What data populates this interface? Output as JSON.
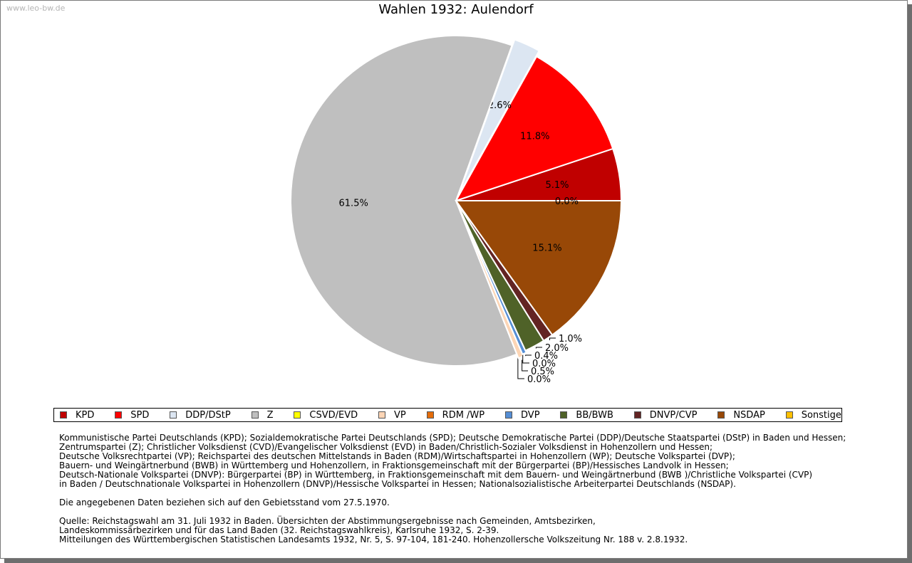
{
  "watermark": "www.leo-bw.de",
  "chart_data": {
    "type": "pie",
    "title": "Wahlen 1932: Aulendorf",
    "start_angle_deg": 0,
    "direction": "counterclockwise",
    "slices": [
      {
        "name": "KPD",
        "value": 5.1,
        "label": "5.1%",
        "color": "#c00000"
      },
      {
        "name": "SPD",
        "value": 11.8,
        "label": "11.8%",
        "color": "#ff0000"
      },
      {
        "name": "DDP/DStP",
        "value": 2.6,
        "label": "2.6%",
        "color": "#dce6f2"
      },
      {
        "name": "Z",
        "value": 61.5,
        "label": "61.5%",
        "color": "#bfbfbf"
      },
      {
        "name": "CSVD/EVD",
        "value": 0.0,
        "label": "0.0%",
        "color": "#ffff00"
      },
      {
        "name": "VP",
        "value": 0.5,
        "label": "0.5%",
        "color": "#fcd5b5"
      },
      {
        "name": "RDM /WP",
        "value": 0.0,
        "label": "0.0%",
        "color": "#e46c0a"
      },
      {
        "name": "DVP",
        "value": 0.4,
        "label": "0.4%",
        "color": "#558ed5"
      },
      {
        "name": "BB/BWB",
        "value": 2.0,
        "label": "2.0%",
        "color": "#4f6228"
      },
      {
        "name": "DNVP/CVP",
        "value": 1.0,
        "label": "1.0%",
        "color": "#632423"
      },
      {
        "name": "NSDAP",
        "value": 15.1,
        "label": "15.1%",
        "color": "#984807"
      },
      {
        "name": "Sonstige",
        "value": 0.0,
        "label": "0.0%",
        "color": "#ffc000"
      }
    ]
  },
  "notes": {
    "parties": [
      "Kommunistische Partei Deutschlands (KPD); Sozialdemokratische Partei Deutschlands (SPD); Deutsche Demokratische Partei (DDP)/Deutsche Staatspartei (DStP) in Baden und Hessen;",
      "Zentrumspartei (Z); Christlicher Volksdienst (CVD)/Evangelischer Volksdienst (EVD) in Baden/Christlich-Sozialer Volksdienst in Hohenzollern und Hessen;",
      "Deutsche Volksrechtpartei (VP); Reichspartei des deutschen Mittelstands in Baden (RDM)/Wirtschaftspartei in Hohenzollern (WP); Deutsche Volkspartei (DVP);",
      "Bauern- und Weingärtnerbund (BWB) in Württemberg und Hohenzollern, in Fraktionsgemeinschaft mit der Bürgerpartei (BP)/Hessisches Landvolk in Hessen;",
      "Deutsch-Nationale Volkspartei (DNVP): Bürgerpartei (BP) in Württemberg, in Fraktionsgemeinschaft mit dem Bauern- und Weingärtnerbund (BWB )/Christliche Volkspartei (CVP)",
      "in Baden / Deutschnationale Volkspartei in Hohenzollern (DNVP)/Hessische Volkspartei in Hessen; Nationalsozialistische Arbeiterpartei Deutschlands (NSDAP)."
    ],
    "territory": "Die angegebenen Daten beziehen sich auf den Gebietsstand vom 27.5.1970.",
    "source": [
      "Quelle: Reichstagswahl am 31. Juli 1932 in Baden. Übersichten der Abstimmungsergebnisse nach Gemeinden, Amtsbezirken,",
      "Landeskommissärbezirken und für das Land Baden (32. Reichstagswahlkreis), Karlsruhe 1932, S. 2-39.",
      "Mitteilungen des Württembergischen Statistischen Landesamts 1932, Nr. 5, S. 97-104, 181-240. Hohenzollersche Volkszeitung Nr. 188 v. 2.8.1932."
    ]
  }
}
